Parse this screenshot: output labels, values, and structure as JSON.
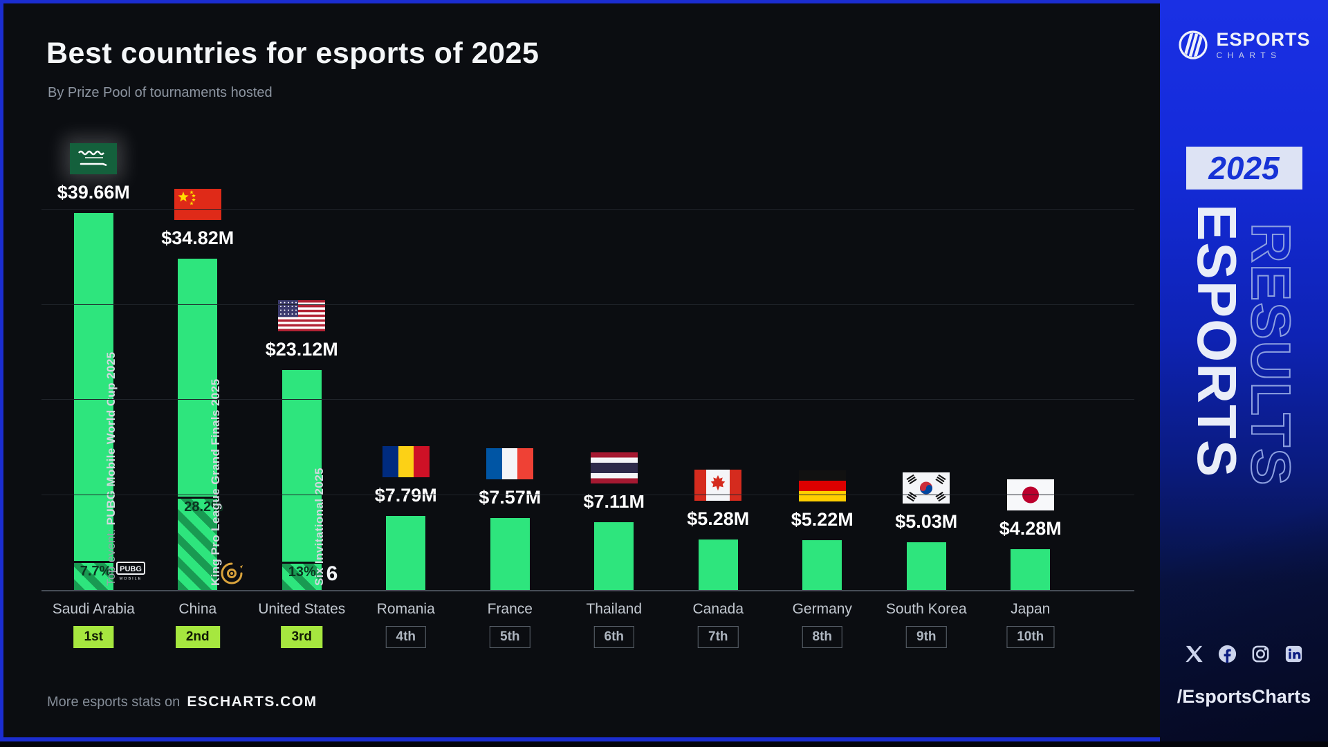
{
  "header": {
    "title": "Best countries for esports of 2025",
    "subtitle": "By Prize Pool of tournaments hosted"
  },
  "chart_data": {
    "type": "bar",
    "title": "Best countries for esports of 2025",
    "subtitle": "By Prize Pool of tournaments hosted",
    "unit": "USD, millions",
    "ylim": [
      0,
      40
    ],
    "gridline_step_m": 10,
    "grid": "on",
    "categories": [
      "Saudi Arabia",
      "China",
      "United States",
      "Romania",
      "France",
      "Thailand",
      "Canada",
      "Germany",
      "South Korea",
      "Japan"
    ],
    "values_m": [
      39.66,
      34.82,
      23.12,
      7.79,
      7.57,
      7.11,
      5.28,
      5.22,
      5.03,
      4.28
    ],
    "value_labels": [
      "$39.66M",
      "$34.82M",
      "$23.12M",
      "$7.79M",
      "$7.57M",
      "$7.11M",
      "$5.28M",
      "$5.22M",
      "$5.03M",
      "$4.28M"
    ],
    "ranks": [
      "1st",
      "2nd",
      "3rd",
      "4th",
      "5th",
      "6th",
      "7th",
      "8th",
      "9th",
      "10th"
    ],
    "flags": [
      "saudi-arabia",
      "china",
      "united-states",
      "romania",
      "france",
      "thailand",
      "canada",
      "germany",
      "south-korea",
      "japan"
    ],
    "top_events": [
      {
        "index": 0,
        "prefix": "Top event: ",
        "name": "PUBG Mobile World Cup 2025",
        "share_label": "7.7%",
        "share_pct": 7.7,
        "icon": "pubg-mobile-icon"
      },
      {
        "index": 1,
        "prefix": "",
        "name": "King Pro League Grand Finals 2025",
        "share_label": "28.2%",
        "share_pct": 28.2,
        "icon": "king-pro-league-icon"
      },
      {
        "index": 2,
        "prefix": "",
        "name": "Six Invitational 2025",
        "share_label": "13%",
        "share_pct": 13,
        "icon": "rainbow-six-icon"
      }
    ]
  },
  "footer": {
    "prefix": "More esports stats on",
    "site": "ESCHARTS.COM"
  },
  "sidebar": {
    "brand_name": "ESPORTS",
    "brand_sub": "CHARTS",
    "year_badge": "2025",
    "watermark_solid": "ESPORTS",
    "watermark_outline": "RESULTS",
    "social": [
      "x",
      "facebook",
      "instagram",
      "linkedin"
    ],
    "handle": "/EsportsCharts"
  },
  "colors": {
    "background": "#0b0d11",
    "bar_green": "#2ee57d",
    "rank_top_bg": "#a6e73f",
    "sidebar_blue": "#1b2dd0",
    "year_text_blue": "#1733d6",
    "text_primary": "#ffffff",
    "text_muted": "#8d95a1"
  }
}
